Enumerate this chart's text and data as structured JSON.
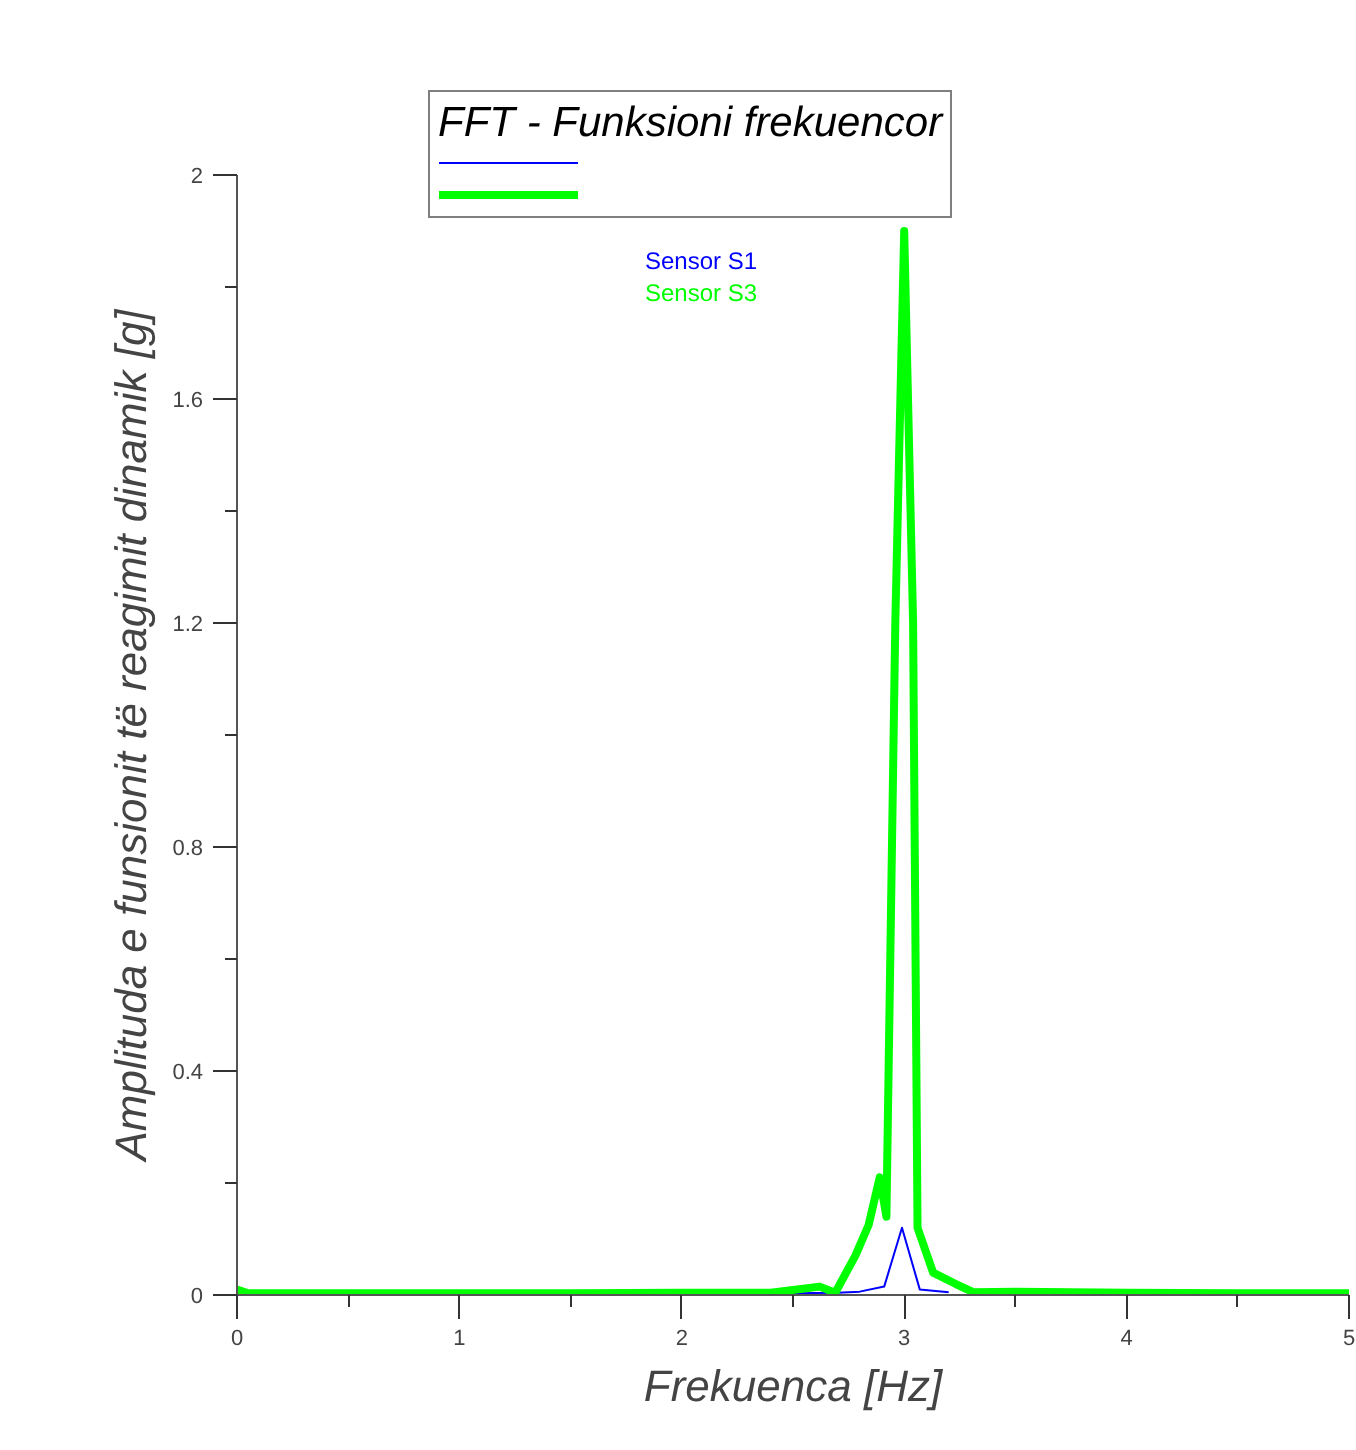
{
  "chart_data": {
    "type": "line",
    "legend_title": "FFT - Funksioni frekuencor",
    "xlabel": "Frekuenca [Hz]",
    "ylabel": "Amplituda e funsionit të reagimit dinamik [g]",
    "xlim": [
      0,
      5
    ],
    "ylim": [
      0,
      2
    ],
    "xticks": [
      0,
      1,
      2,
      3,
      4,
      5
    ],
    "yticks": [
      0,
      0.4,
      0.8,
      1.2,
      1.6,
      2
    ],
    "grid": false,
    "legend": "top",
    "marker": "none",
    "line_style": "solid",
    "series": [
      {
        "name": "Sensor S1",
        "color": "#0000ff",
        "x": [
          2.5,
          2.7,
          2.8,
          2.91,
          2.99,
          3.07,
          3.2
        ],
        "values": [
          0.003,
          0.004,
          0.006,
          0.015,
          0.12,
          0.01,
          0.005
        ]
      },
      {
        "name": "Sensor S3",
        "color": "#00ff00",
        "x": [
          0,
          0.05,
          0.5,
          1,
          1.5,
          2,
          2.4,
          2.62,
          2.69,
          2.78,
          2.84,
          2.89,
          2.92,
          2.96,
          3.0,
          3.04,
          3.06,
          3.13,
          3.23,
          3.31,
          3.5,
          4,
          4.5,
          5
        ],
        "values": [
          0.01,
          0.003,
          0.003,
          0.003,
          0.003,
          0.004,
          0.004,
          0.015,
          0.004,
          0.07,
          0.125,
          0.21,
          0.14,
          1.2,
          1.9,
          1.2,
          0.12,
          0.04,
          0.02,
          0.005,
          0.006,
          0.004,
          0.003,
          0.003
        ]
      }
    ]
  }
}
